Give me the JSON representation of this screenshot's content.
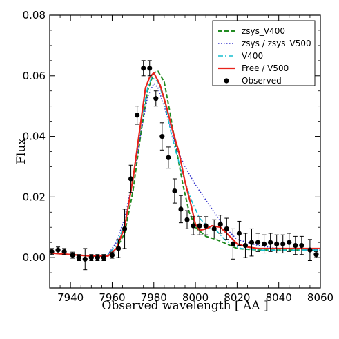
{
  "chart_data": {
    "type": "line",
    "xlabel": "Observed wavelength [ AA ]",
    "ylabel": "Flux",
    "xlim": [
      7930,
      8060
    ],
    "ylim": [
      -0.01,
      0.08
    ],
    "xticks": [
      7940,
      7960,
      7980,
      8000,
      8020,
      8040,
      8060
    ],
    "yticks": [
      0.0,
      0.02,
      0.04,
      0.06,
      0.08
    ],
    "ytick_labels": [
      "0.00",
      "0.02",
      "0.04",
      "0.06",
      "0.08"
    ],
    "legend_position": "top-right",
    "series": [
      {
        "name": "zsys_V400",
        "color": "#228B22",
        "style": "dashed",
        "points": [
          [
            7930,
            0.0015
          ],
          [
            7940,
            0.001
          ],
          [
            7950,
            0.0005
          ],
          [
            7958,
            0.0005
          ],
          [
            7962,
            0.003
          ],
          [
            7966,
            0.008
          ],
          [
            7970,
            0.022
          ],
          [
            7974,
            0.042
          ],
          [
            7977,
            0.055
          ],
          [
            7980,
            0.061
          ],
          [
            7982,
            0.0615
          ],
          [
            7985,
            0.058
          ],
          [
            7988,
            0.047
          ],
          [
            7991,
            0.035
          ],
          [
            7994,
            0.024
          ],
          [
            7997,
            0.015
          ],
          [
            8000,
            0.01
          ],
          [
            8005,
            0.007
          ],
          [
            8010,
            0.006
          ],
          [
            8015,
            0.0045
          ],
          [
            8020,
            0.003
          ],
          [
            8030,
            0.0025
          ],
          [
            8040,
            0.0025
          ],
          [
            8050,
            0.0025
          ],
          [
            8060,
            0.0025
          ]
        ]
      },
      {
        "name": "zsys / zsys_V500",
        "color": "#3333cc",
        "style": "dotted",
        "points": [
          [
            7930,
            0.0015
          ],
          [
            7940,
            0.001
          ],
          [
            7950,
            0.0005
          ],
          [
            7958,
            0.001
          ],
          [
            7962,
            0.005
          ],
          [
            7966,
            0.013
          ],
          [
            7970,
            0.026
          ],
          [
            7974,
            0.042
          ],
          [
            7977,
            0.053
          ],
          [
            7980,
            0.0575
          ],
          [
            7982,
            0.056
          ],
          [
            7985,
            0.05
          ],
          [
            7988,
            0.043
          ],
          [
            7991,
            0.036
          ],
          [
            7995,
            0.03
          ],
          [
            8000,
            0.024
          ],
          [
            8005,
            0.019
          ],
          [
            8010,
            0.014
          ],
          [
            8013,
            0.011
          ],
          [
            8017,
            0.008
          ],
          [
            8020,
            0.006
          ],
          [
            8030,
            0.004
          ],
          [
            8040,
            0.003
          ],
          [
            8050,
            0.003
          ],
          [
            8060,
            0.0025
          ]
        ]
      },
      {
        "name": "V400",
        "color": "#17becf",
        "style": "dashdot",
        "points": [
          [
            7930,
            0.0015
          ],
          [
            7940,
            0.001
          ],
          [
            7950,
            0.0005
          ],
          [
            7958,
            0.001
          ],
          [
            7962,
            0.004
          ],
          [
            7966,
            0.011
          ],
          [
            7970,
            0.026
          ],
          [
            7974,
            0.045
          ],
          [
            7977,
            0.056
          ],
          [
            7979,
            0.0595
          ],
          [
            7982,
            0.058
          ],
          [
            7985,
            0.052
          ],
          [
            7988,
            0.042
          ],
          [
            7991,
            0.034
          ],
          [
            7994,
            0.027
          ],
          [
            7998,
            0.019
          ],
          [
            8002,
            0.013
          ],
          [
            8006,
            0.01
          ],
          [
            8010,
            0.009
          ],
          [
            8014,
            0.006
          ],
          [
            8018,
            0.004
          ],
          [
            8022,
            0.003
          ],
          [
            8030,
            0.0025
          ],
          [
            8040,
            0.0025
          ],
          [
            8050,
            0.0025
          ],
          [
            8060,
            0.0025
          ]
        ]
      },
      {
        "name": "Free / V500",
        "color": "#e8231b",
        "style": "solid",
        "points": [
          [
            7930,
            0.0015
          ],
          [
            7940,
            0.001
          ],
          [
            7950,
            0.0005
          ],
          [
            7958,
            0.0005
          ],
          [
            7962,
            0.003
          ],
          [
            7966,
            0.01
          ],
          [
            7970,
            0.026
          ],
          [
            7974,
            0.046
          ],
          [
            7976,
            0.056
          ],
          [
            7978,
            0.0595
          ],
          [
            7980,
            0.061
          ],
          [
            7983,
            0.057
          ],
          [
            7986,
            0.05
          ],
          [
            7989,
            0.042
          ],
          [
            7992,
            0.035
          ],
          [
            7995,
            0.025
          ],
          [
            7998,
            0.017
          ],
          [
            8000,
            0.011
          ],
          [
            8002,
            0.009
          ],
          [
            8005,
            0.0095
          ],
          [
            8008,
            0.0105
          ],
          [
            8012,
            0.01
          ],
          [
            8015,
            0.008
          ],
          [
            8018,
            0.006
          ],
          [
            8020,
            0.0045
          ],
          [
            8025,
            0.0035
          ],
          [
            8030,
            0.003
          ],
          [
            8040,
            0.003
          ],
          [
            8050,
            0.003
          ],
          [
            8060,
            0.003
          ]
        ]
      }
    ],
    "observed": {
      "name": "Observed",
      "color": "#000000",
      "points": [
        {
          "x": 7931,
          "y": 0.002,
          "err": 0.001
        },
        {
          "x": 7934,
          "y": 0.0025,
          "err": 0.001
        },
        {
          "x": 7937,
          "y": 0.002,
          "err": 0.001
        },
        {
          "x": 7941,
          "y": 0.0008,
          "err": 0.001
        },
        {
          "x": 7944,
          "y": 0.0,
          "err": 0.001
        },
        {
          "x": 7947,
          "y": -0.0005,
          "err": 0.0035
        },
        {
          "x": 7950,
          "y": 0.0,
          "err": 0.001
        },
        {
          "x": 7953,
          "y": 0.0,
          "err": 0.001
        },
        {
          "x": 7956,
          "y": 0.0,
          "err": 0.001
        },
        {
          "x": 7960,
          "y": 0.0008,
          "err": 0.001
        },
        {
          "x": 7963,
          "y": 0.003,
          "err": 0.003
        },
        {
          "x": 7966,
          "y": 0.0095,
          "err": 0.0065
        },
        {
          "x": 7969,
          "y": 0.026,
          "err": 0.0045
        },
        {
          "x": 7972,
          "y": 0.047,
          "err": 0.003
        },
        {
          "x": 7975,
          "y": 0.0625,
          "err": 0.0025
        },
        {
          "x": 7978,
          "y": 0.0625,
          "err": 0.0025
        },
        {
          "x": 7981,
          "y": 0.0525,
          "err": 0.0025
        },
        {
          "x": 7984,
          "y": 0.04,
          "err": 0.0045
        },
        {
          "x": 7987,
          "y": 0.033,
          "err": 0.0035
        },
        {
          "x": 7990,
          "y": 0.022,
          "err": 0.004
        },
        {
          "x": 7993,
          "y": 0.016,
          "err": 0.0045
        },
        {
          "x": 7996,
          "y": 0.0125,
          "err": 0.003
        },
        {
          "x": 7999,
          "y": 0.0105,
          "err": 0.003
        },
        {
          "x": 8002,
          "y": 0.0105,
          "err": 0.003
        },
        {
          "x": 8005,
          "y": 0.0105,
          "err": 0.003
        },
        {
          "x": 8009,
          "y": 0.0095,
          "err": 0.003
        },
        {
          "x": 8012,
          "y": 0.011,
          "err": 0.003
        },
        {
          "x": 8015,
          "y": 0.0095,
          "err": 0.0035
        },
        {
          "x": 8018,
          "y": 0.0045,
          "err": 0.005
        },
        {
          "x": 8021,
          "y": 0.008,
          "err": 0.004
        },
        {
          "x": 8024,
          "y": 0.004,
          "err": 0.004
        },
        {
          "x": 8027,
          "y": 0.005,
          "err": 0.0045
        },
        {
          "x": 8030,
          "y": 0.005,
          "err": 0.003
        },
        {
          "x": 8033,
          "y": 0.0045,
          "err": 0.003
        },
        {
          "x": 8036,
          "y": 0.005,
          "err": 0.003
        },
        {
          "x": 8039,
          "y": 0.0045,
          "err": 0.003
        },
        {
          "x": 8042,
          "y": 0.0045,
          "err": 0.003
        },
        {
          "x": 8045,
          "y": 0.005,
          "err": 0.003
        },
        {
          "x": 8048,
          "y": 0.004,
          "err": 0.003
        },
        {
          "x": 8051,
          "y": 0.004,
          "err": 0.003
        },
        {
          "x": 8055,
          "y": 0.0025,
          "err": 0.0035
        },
        {
          "x": 8058,
          "y": 0.001,
          "err": 0.001
        }
      ]
    }
  }
}
